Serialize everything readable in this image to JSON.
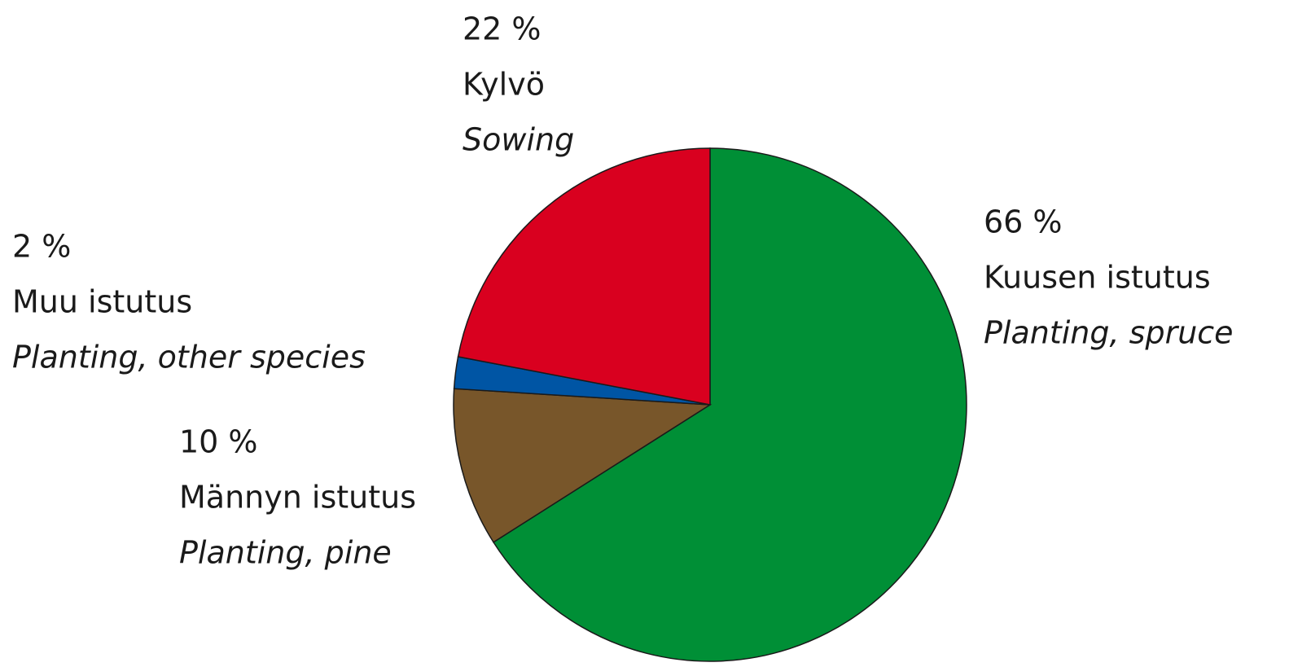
{
  "chart_data": {
    "type": "pie",
    "categories": [
      "Kuusen istutus",
      "Männyn istutus",
      "Muu istutus",
      "Kylvö"
    ],
    "categories_en": [
      "Planting, spruce",
      "Planting, pine",
      "Planting, other species",
      "Sowing"
    ],
    "values": [
      66,
      10,
      2,
      22
    ],
    "value_labels": [
      "66 %",
      "10 %",
      "2 %",
      "22 %"
    ],
    "colors": [
      "#008f36",
      "#78562a",
      "#0055a4",
      "#d9001f"
    ]
  }
}
